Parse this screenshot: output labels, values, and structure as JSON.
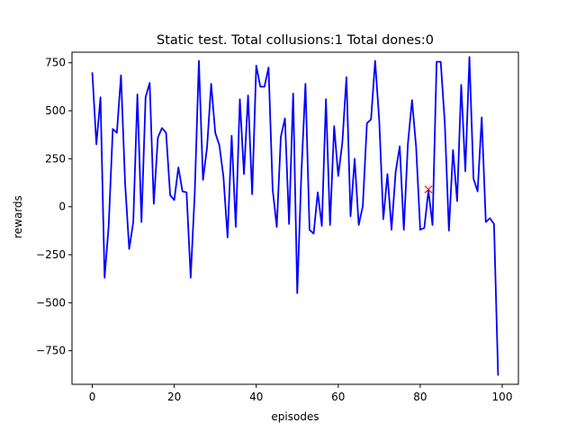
{
  "chart_data": {
    "type": "line",
    "title": "Static test. Total collusions:1 Total dones:0",
    "xlabel": "episodes",
    "ylabel": "rewards",
    "xlim": [
      -4.95,
      103.95
    ],
    "ylim": [
      -925,
      805
    ],
    "xticks": [
      0,
      20,
      40,
      60,
      80,
      100
    ],
    "yticks": [
      -750,
      -500,
      -250,
      0,
      250,
      500,
      750
    ],
    "xtick_labels": [
      "0",
      "20",
      "40",
      "60",
      "80",
      "100"
    ],
    "ytick_labels": [
      "−750",
      "−500",
      "−250",
      "0",
      "250",
      "500",
      "750"
    ],
    "grid": false,
    "series": [
      {
        "color": "#0000ff",
        "x": [
          0,
          1,
          2,
          3,
          4,
          5,
          6,
          7,
          8,
          9,
          10,
          11,
          12,
          13,
          14,
          15,
          16,
          17,
          18,
          19,
          20,
          21,
          22,
          23,
          24,
          25,
          26,
          27,
          28,
          29,
          30,
          31,
          32,
          33,
          34,
          35,
          36,
          37,
          38,
          39,
          40,
          41,
          42,
          43,
          44,
          45,
          46,
          47,
          48,
          49,
          50,
          51,
          52,
          53,
          54,
          55,
          56,
          57,
          58,
          59,
          60,
          61,
          62,
          63,
          64,
          65,
          66,
          67,
          68,
          69,
          70,
          71,
          72,
          73,
          74,
          75,
          76,
          77,
          78,
          79,
          80,
          81,
          82,
          83,
          84,
          85,
          86,
          87,
          88,
          89,
          90,
          91,
          92,
          93,
          94,
          95,
          96,
          97,
          98,
          99
        ],
        "y": [
          700,
          325,
          570,
          -370,
          -100,
          405,
          385,
          685,
          125,
          -220,
          -80,
          585,
          -80,
          570,
          645,
          15,
          360,
          410,
          385,
          60,
          35,
          205,
          80,
          75,
          -370,
          75,
          760,
          140,
          310,
          640,
          385,
          320,
          155,
          -160,
          370,
          -105,
          560,
          170,
          580,
          65,
          735,
          625,
          625,
          725,
          90,
          -105,
          365,
          460,
          -90,
          590,
          -450,
          170,
          640,
          -120,
          -140,
          75,
          -100,
          560,
          -95,
          420,
          160,
          335,
          675,
          -50,
          250,
          -95,
          5,
          435,
          455,
          760,
          450,
          -65,
          170,
          -120,
          180,
          315,
          -120,
          330,
          555,
          310,
          -120,
          -110,
          85,
          -95,
          755,
          755,
          435,
          -125,
          295,
          30,
          635,
          185,
          780,
          145,
          80,
          465,
          -80,
          -60,
          -90,
          -880
        ]
      }
    ],
    "markers": [
      {
        "x": 82,
        "y": 90,
        "symbol": "x",
        "color": "#ff0000"
      }
    ]
  }
}
